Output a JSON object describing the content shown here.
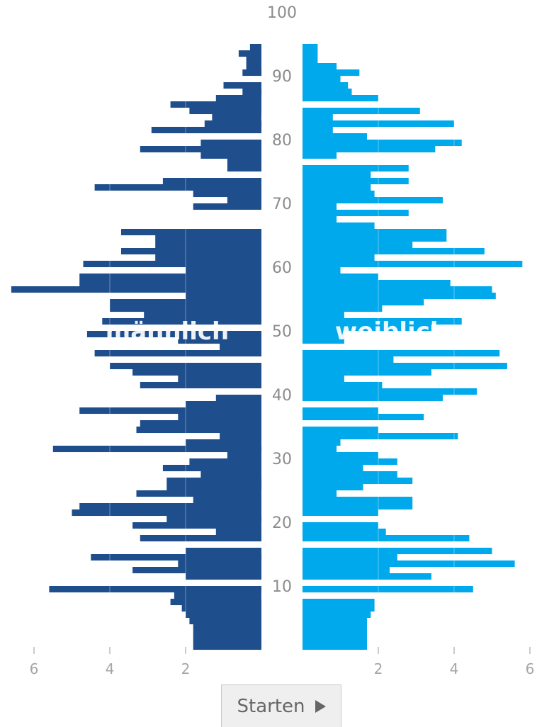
{
  "chart_data": {
    "type": "bar",
    "orientation": "horizontal-pyramid",
    "title": "",
    "ylabel": "",
    "xlabel": "",
    "x_ticks_left": [
      "6",
      "4",
      "2"
    ],
    "x_ticks_right": [
      "2",
      "4",
      "6"
    ],
    "xlim": [
      0,
      6
    ],
    "ylim": [
      0,
      100
    ],
    "y_tick_labels": [
      "100",
      "90",
      "80",
      "70",
      "60",
      "50",
      "40",
      "30",
      "20",
      "10"
    ],
    "series": [
      {
        "name": "männlich",
        "color": "#1f4e8c",
        "ages": [
          1,
          2,
          3,
          4,
          5,
          6,
          7,
          8,
          9,
          10,
          11,
          12,
          13,
          14,
          15,
          16,
          17,
          18,
          19,
          20,
          21,
          22,
          23,
          24,
          25,
          26,
          27,
          28,
          29,
          30,
          31,
          32,
          33,
          34,
          35,
          36,
          37,
          38,
          39,
          40,
          41,
          42,
          43,
          44,
          45,
          46,
          47,
          48,
          49,
          50,
          51,
          52,
          53,
          54,
          55,
          56,
          57,
          58,
          59,
          60,
          61,
          62,
          63,
          64,
          65,
          66,
          67,
          68,
          69,
          70,
          71,
          72,
          73,
          74,
          75,
          76,
          77,
          78,
          79,
          80,
          81,
          82,
          83,
          84,
          85,
          86,
          87,
          88,
          89,
          90,
          91,
          92,
          93,
          94,
          95
        ],
        "values": [
          1.8,
          1.8,
          1.8,
          1.8,
          1.9,
          2.0,
          2.1,
          2.4,
          2.3,
          5.6,
          0,
          2.0,
          3.4,
          2.2,
          4.5,
          2.0,
          0,
          3.2,
          1.2,
          3.4,
          2.5,
          5.0,
          4.8,
          1.8,
          3.3,
          2.5,
          2.5,
          1.6,
          2.6,
          1.9,
          0.9,
          5.5,
          2.0,
          1.1,
          3.3,
          3.2,
          2.2,
          4.8,
          2.0,
          1.2,
          0,
          3.2,
          2.2,
          3.4,
          4.0,
          0,
          4.4,
          1.1,
          2.2,
          4.6,
          0,
          4.2,
          3.1,
          4.0,
          4.0,
          2.0,
          6.6,
          4.8,
          4.8,
          2.0,
          4.7,
          2.8,
          3.7,
          2.8,
          2.8,
          3.7,
          0,
          0,
          0,
          1.8,
          0.9,
          1.8,
          4.4,
          2.6,
          0,
          0.9,
          0.9,
          1.6,
          3.2,
          1.6,
          0,
          2.9,
          1.5,
          1.3,
          1.9,
          2.4,
          1.2,
          0.5,
          1.0,
          0,
          0.5,
          0.4,
          0.4,
          0.6,
          0.3
        ]
      },
      {
        "name": "weiblich",
        "color": "#00a9ec",
        "ages": [
          1,
          2,
          3,
          4,
          5,
          6,
          7,
          8,
          9,
          10,
          11,
          12,
          13,
          14,
          15,
          16,
          17,
          18,
          19,
          20,
          21,
          22,
          23,
          24,
          25,
          26,
          27,
          28,
          29,
          30,
          31,
          32,
          33,
          34,
          35,
          36,
          37,
          38,
          39,
          40,
          41,
          42,
          43,
          44,
          45,
          46,
          47,
          48,
          49,
          50,
          51,
          52,
          53,
          54,
          55,
          56,
          57,
          58,
          59,
          60,
          61,
          62,
          63,
          64,
          65,
          66,
          67,
          68,
          69,
          70,
          71,
          72,
          73,
          74,
          75,
          76,
          77,
          78,
          79,
          80,
          81,
          82,
          83,
          84,
          85,
          86,
          87,
          88,
          89,
          90,
          91,
          92,
          93,
          94,
          95
        ],
        "values": [
          1.7,
          1.7,
          1.7,
          1.7,
          1.7,
          1.8,
          1.9,
          1.9,
          0,
          4.5,
          0,
          3.4,
          2.3,
          5.6,
          2.5,
          5.0,
          0,
          4.4,
          2.2,
          2.0,
          0,
          2.0,
          2.9,
          2.9,
          0.9,
          1.6,
          2.9,
          2.5,
          1.6,
          2.5,
          2.0,
          0.9,
          1.0,
          4.1,
          2.0,
          0,
          3.2,
          2.0,
          0,
          3.7,
          4.6,
          2.1,
          1.1,
          3.4,
          5.4,
          2.4,
          5.2,
          0,
          1.1,
          1.1,
          3.4,
          4.2,
          1.1,
          2.1,
          3.2,
          5.1,
          5.0,
          3.9,
          2.0,
          1.0,
          5.8,
          1.9,
          4.8,
          2.9,
          3.8,
          3.8,
          1.9,
          0.9,
          2.8,
          0.9,
          3.7,
          1.9,
          1.8,
          2.8,
          1.8,
          2.8,
          0,
          0.9,
          3.5,
          4.2,
          1.7,
          0.8,
          4.0,
          0.8,
          3.1,
          0,
          2.0,
          1.3,
          1.2,
          1.0,
          1.5,
          0.9,
          0.4,
          0.4,
          0.4
        ]
      }
    ],
    "grid": true,
    "side_labels": {
      "left": "männlich",
      "right": "weiblich"
    }
  },
  "controls": {
    "start_label": "Starten",
    "start_icon": "play-icon"
  }
}
